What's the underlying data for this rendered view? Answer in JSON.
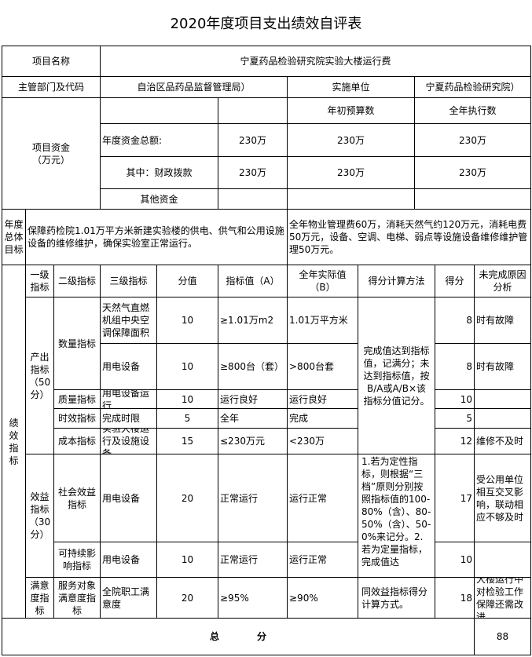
{
  "title": "2020年度项目支出绩效自评表",
  "project_name_label": "项目名称",
  "project_name": "宁夏药品检验研究院实验大楼运行费",
  "dept_label": "主管部门及代码",
  "dept": "自治区品药品监督管理局）",
  "impl_label": "实施单位",
  "impl": "宁夏药品检验研究院）",
  "funds": {
    "label": "项目资金\n（万元）",
    "budget_header": "年初预算数",
    "exec_header": "全年执行数",
    "rows": [
      {
        "label": "年度资金总额:",
        "a": "230万",
        "budget": "230万",
        "exec": "230万"
      },
      {
        "label": "其中：财政拨款",
        "a": "230万",
        "budget": "230万",
        "exec": "230万"
      },
      {
        "label": "其他资金",
        "a": "",
        "budget": "",
        "exec": ""
      }
    ]
  },
  "goal": {
    "label": "年度总体目标",
    "target": "保障药检院1.01万平方米新建实验楼的供电、供气和公用设施设备的维修维护，确保实验室正常运行。",
    "actual": "全年物业管理费60万，消耗天然气约120万元，消耗电费50万元，设备、空调、电梯、弱点等设施设备维修维护管理50万元。"
  },
  "perf": {
    "label": "绩效指标",
    "headers": [
      "一级指标",
      "二级指标",
      "三级指标",
      "分值",
      "指标值（A）",
      "全年实际值（B）",
      "得分计算方法",
      "得分",
      "未完成原因分析"
    ],
    "groups": [
      "产出指标（50分）",
      "效益指标（30分）",
      "满意度指标（20分）"
    ],
    "sub": [
      "数量指标",
      "质量指标",
      "时效指标",
      "成本指标",
      "社会效益指标",
      "可持续影响指标",
      "服务对象满意度指标"
    ],
    "rows": [
      {
        "name": "天然气直燃机组中央空调保障面积",
        "score_value": "10",
        "target": "≥1.01万m2",
        "actual": "1.01万平方米",
        "score": "8",
        "reason": "时有故障"
      },
      {
        "name": "用电设备",
        "score_value": "10",
        "target": "≥800台（套）",
        "actual": ">800台套",
        "score": "8",
        "reason": "时有故障"
      },
      {
        "name": "用电设备运行",
        "score_value": "10",
        "target": "运行良好",
        "actual": "运行良好",
        "score": "10",
        "reason": ""
      },
      {
        "name": "完成时限",
        "score_value": "5",
        "target": "全年",
        "actual": "完成",
        "score": "5",
        "reason": ""
      },
      {
        "name": "实验大楼运行及设施设备",
        "score_value": "15",
        "target": "≤230万元",
        "actual": "<230万",
        "score": "12",
        "reason": "维修不及时"
      },
      {
        "name": "用电设备",
        "score_value": "20",
        "target": "正常运行",
        "actual": "运行正常",
        "score": "17",
        "reason": "受公用单位相互交叉影响，联动相应不够及时"
      },
      {
        "name": "用电设备",
        "score_value": "10",
        "target": "正常运行",
        "actual": "运行正常",
        "score": "10",
        "reason": ""
      },
      {
        "name": "全院职工满意度",
        "score_value": "20",
        "target": "≥95%",
        "actual": "≥90%",
        "score": "18",
        "reason": "大楼运行中对检验工作保障还需改进"
      }
    ],
    "methods": [
      "完成值达到指标值，记满分；未达到指标值，按B/A或A/B×该指标分值记分。",
      "1.若为定性指标，则根据“三档”原则分别按照指标值的100-80%（含）、80-50%（含）、50-0%来记分。2.若为定量指标，完成值达",
      "同效益指标得分计算方式。"
    ]
  },
  "total": {
    "label": "总　　　　分",
    "value": "88"
  }
}
